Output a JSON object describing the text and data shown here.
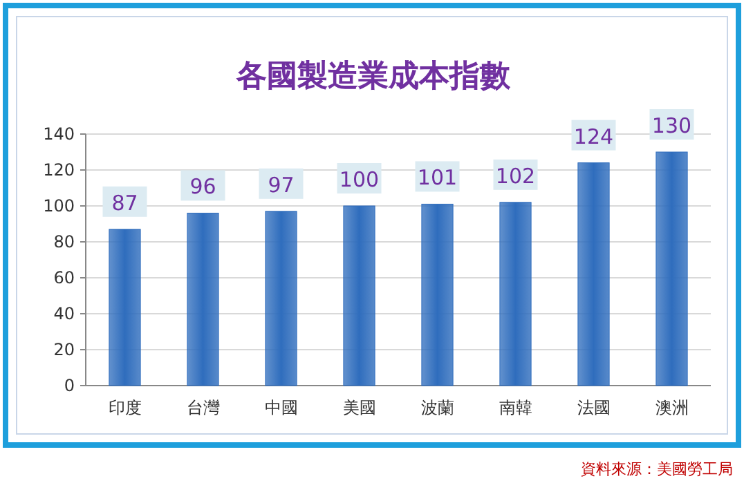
{
  "chart_data": {
    "type": "bar",
    "title": "各國製造業成本指數",
    "categories": [
      "印度",
      "台灣",
      "中國",
      "美國",
      "波蘭",
      "南韓",
      "法國",
      "澳洲"
    ],
    "values": [
      87,
      96,
      97,
      100,
      101,
      102,
      124,
      130
    ],
    "color": "#2f6dbd",
    "ylim": [
      0,
      140
    ],
    "yticks": [
      0,
      20,
      40,
      60,
      80,
      100,
      120,
      140
    ],
    "grid": "y",
    "data_labels": true,
    "annotations": [
      "資料來源：美國勞工局"
    ]
  }
}
